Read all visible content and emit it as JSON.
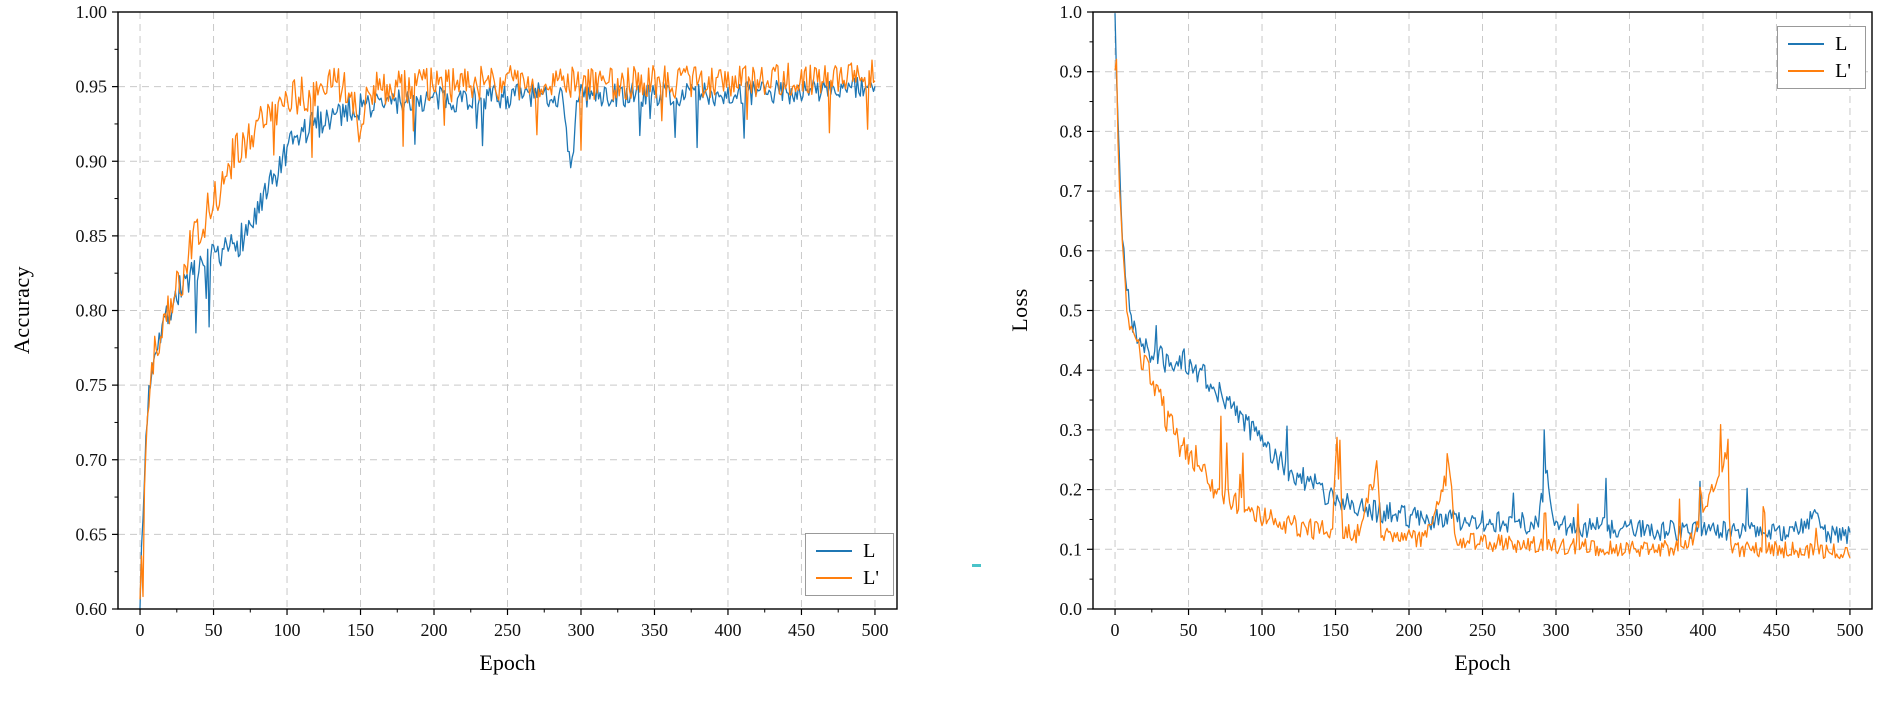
{
  "figure": {
    "background": "#ffffff",
    "grid_color": "#c9c9c9",
    "axis_color": "#000000"
  },
  "stray_mark": {
    "color": "#4ac3c9"
  },
  "chart_data": [
    {
      "type": "line",
      "title": "",
      "xlabel": "Epoch",
      "ylabel": "Accuracy",
      "xlim": [
        -15,
        515
      ],
      "ylim": [
        0.6,
        1.0
      ],
      "grid": true,
      "legend_position": "bottom-right",
      "xticks": {
        "values": [
          0,
          50,
          100,
          150,
          200,
          250,
          300,
          350,
          400,
          450,
          500
        ],
        "labels": [
          "0",
          "50",
          "100",
          "150",
          "200",
          "250",
          "300",
          "350",
          "400",
          "450",
          "500"
        ]
      },
      "yticks": {
        "values": [
          0.6,
          0.65,
          0.7,
          0.75,
          0.8,
          0.85,
          0.9,
          0.95,
          1.0
        ],
        "labels": [
          "0.60",
          "0.65",
          "0.70",
          "0.75",
          "0.80",
          "0.85",
          "0.90",
          "0.95",
          "1.00"
        ]
      },
      "series": [
        {
          "name": "L",
          "color": "#1f77b4",
          "seed": 7,
          "spike_prob": 0.02,
          "spike_scale": 2.2,
          "spike_dir": -1,
          "anchors": [
            [
              0,
              0.608
            ],
            [
              2,
              0.66
            ],
            [
              4,
              0.715
            ],
            [
              6,
              0.745
            ],
            [
              8,
              0.762
            ],
            [
              10,
              0.775
            ],
            [
              14,
              0.787
            ],
            [
              18,
              0.796
            ],
            [
              22,
              0.805
            ],
            [
              26,
              0.812
            ],
            [
              30,
              0.82
            ],
            [
              36,
              0.822
            ],
            [
              42,
              0.826
            ],
            [
              48,
              0.833
            ],
            [
              54,
              0.831
            ],
            [
              60,
              0.84
            ],
            [
              66,
              0.847
            ],
            [
              72,
              0.852
            ],
            [
              78,
              0.862
            ],
            [
              84,
              0.872
            ],
            [
              90,
              0.885
            ],
            [
              96,
              0.897
            ],
            [
              102,
              0.908
            ],
            [
              108,
              0.916
            ],
            [
              114,
              0.921
            ],
            [
              120,
              0.926
            ],
            [
              128,
              0.93
            ],
            [
              136,
              0.933
            ],
            [
              144,
              0.936
            ],
            [
              152,
              0.937
            ],
            [
              165,
              0.939
            ],
            [
              180,
              0.94
            ],
            [
              200,
              0.941
            ],
            [
              230,
              0.943
            ],
            [
              260,
              0.944
            ],
            [
              288,
              0.944
            ],
            [
              293,
              0.893
            ],
            [
              298,
              0.944
            ],
            [
              330,
              0.944
            ],
            [
              370,
              0.945
            ],
            [
              410,
              0.945
            ],
            [
              450,
              0.947
            ],
            [
              500,
              0.95
            ]
          ],
          "noise": [
            [
              0,
              0.008
            ],
            [
              20,
              0.011
            ],
            [
              60,
              0.012
            ],
            [
              120,
              0.011
            ],
            [
              160,
              0.009
            ],
            [
              500,
              0.008
            ]
          ]
        },
        {
          "name": "L'",
          "color": "#ff7f0e",
          "seed": 12,
          "spike_prob": 0.025,
          "spike_scale": 2.0,
          "spike_dir": -1,
          "anchors": [
            [
              0,
              0.612
            ],
            [
              2,
              0.655
            ],
            [
              4,
              0.7
            ],
            [
              6,
              0.735
            ],
            [
              8,
              0.757
            ],
            [
              10,
              0.772
            ],
            [
              14,
              0.788
            ],
            [
              18,
              0.8
            ],
            [
              22,
              0.81
            ],
            [
              26,
              0.818
            ],
            [
              30,
              0.828
            ],
            [
              34,
              0.84
            ],
            [
              38,
              0.848
            ],
            [
              42,
              0.855
            ],
            [
              46,
              0.865
            ],
            [
              50,
              0.875
            ],
            [
              54,
              0.882
            ],
            [
              58,
              0.892
            ],
            [
              62,
              0.9
            ],
            [
              66,
              0.908
            ],
            [
              70,
              0.914
            ],
            [
              76,
              0.92
            ],
            [
              82,
              0.926
            ],
            [
              88,
              0.93
            ],
            [
              94,
              0.935
            ],
            [
              100,
              0.94
            ],
            [
              108,
              0.944
            ],
            [
              116,
              0.947
            ],
            [
              124,
              0.949
            ],
            [
              134,
              0.95
            ],
            [
              144,
              0.95
            ],
            [
              149,
              0.918
            ],
            [
              154,
              0.949
            ],
            [
              170,
              0.95
            ],
            [
              200,
              0.951
            ],
            [
              240,
              0.952
            ],
            [
              280,
              0.953
            ],
            [
              320,
              0.952
            ],
            [
              360,
              0.953
            ],
            [
              400,
              0.953
            ],
            [
              440,
              0.955
            ],
            [
              470,
              0.955
            ],
            [
              500,
              0.957
            ]
          ],
          "noise": [
            [
              0,
              0.013
            ],
            [
              30,
              0.015
            ],
            [
              100,
              0.013
            ],
            [
              160,
              0.012
            ],
            [
              500,
              0.011
            ]
          ]
        }
      ]
    },
    {
      "type": "line",
      "title": "",
      "xlabel": "Epoch",
      "ylabel": "Loss",
      "xlim": [
        -15,
        515
      ],
      "ylim": [
        0.0,
        1.0
      ],
      "grid": true,
      "legend_position": "top-right",
      "xticks": {
        "values": [
          0,
          50,
          100,
          150,
          200,
          250,
          300,
          350,
          400,
          450,
          500
        ],
        "labels": [
          "0",
          "50",
          "100",
          "150",
          "200",
          "250",
          "300",
          "350",
          "400",
          "450",
          "500"
        ]
      },
      "yticks": {
        "values": [
          0.0,
          0.1,
          0.2,
          0.3,
          0.4,
          0.5,
          0.6,
          0.7,
          0.8,
          0.9,
          1.0
        ],
        "labels": [
          "0.0",
          "0.1",
          "0.2",
          "0.3",
          "0.4",
          "0.5",
          "0.6",
          "0.7",
          "0.8",
          "0.9",
          "1.0"
        ]
      },
      "series": [
        {
          "name": "L",
          "color": "#1f77b4",
          "seed": 21,
          "spike_prob": 0.03,
          "spike_scale": 2.5,
          "spike_dir": 1,
          "anchors": [
            [
              0,
              1.0
            ],
            [
              1,
              0.9
            ],
            [
              2,
              0.82
            ],
            [
              3,
              0.74
            ],
            [
              4,
              0.68
            ],
            [
              5,
              0.63
            ],
            [
              6,
              0.6
            ],
            [
              8,
              0.545
            ],
            [
              10,
              0.5
            ],
            [
              13,
              0.47
            ],
            [
              16,
              0.452
            ],
            [
              20,
              0.437
            ],
            [
              25,
              0.428
            ],
            [
              30,
              0.422
            ],
            [
              36,
              0.415
            ],
            [
              42,
              0.412
            ],
            [
              48,
              0.418
            ],
            [
              54,
              0.405
            ],
            [
              60,
              0.395
            ],
            [
              66,
              0.378
            ],
            [
              72,
              0.36
            ],
            [
              78,
              0.342
            ],
            [
              84,
              0.325
            ],
            [
              90,
              0.305
            ],
            [
              96,
              0.29
            ],
            [
              102,
              0.272
            ],
            [
              108,
              0.256
            ],
            [
              114,
              0.245
            ],
            [
              120,
              0.232
            ],
            [
              128,
              0.218
            ],
            [
              136,
              0.205
            ],
            [
              144,
              0.195
            ],
            [
              152,
              0.185
            ],
            [
              162,
              0.175
            ],
            [
              172,
              0.168
            ],
            [
              185,
              0.16
            ],
            [
              200,
              0.155
            ],
            [
              220,
              0.15
            ],
            [
              240,
              0.148
            ],
            [
              265,
              0.144
            ],
            [
              288,
              0.142
            ],
            [
              293,
              0.235
            ],
            [
              298,
              0.142
            ],
            [
              320,
              0.138
            ],
            [
              350,
              0.134
            ],
            [
              380,
              0.132
            ],
            [
              410,
              0.13
            ],
            [
              440,
              0.128
            ],
            [
              460,
              0.127
            ],
            [
              478,
              0.155
            ],
            [
              484,
              0.127
            ],
            [
              500,
              0.122
            ]
          ],
          "noise": [
            [
              0,
              0.015
            ],
            [
              10,
              0.02
            ],
            [
              60,
              0.022
            ],
            [
              120,
              0.022
            ],
            [
              180,
              0.02
            ],
            [
              500,
              0.016
            ]
          ]
        },
        {
          "name": "L'",
          "color": "#ff7f0e",
          "seed": 33,
          "spike_prob": 0.04,
          "spike_scale": 2.8,
          "spike_dir": 1,
          "anchors": [
            [
              0,
              0.9
            ],
            [
              1,
              0.84
            ],
            [
              2,
              0.77
            ],
            [
              3,
              0.7
            ],
            [
              4,
              0.645
            ],
            [
              5,
              0.6
            ],
            [
              6,
              0.565
            ],
            [
              8,
              0.515
            ],
            [
              10,
              0.48
            ],
            [
              13,
              0.452
            ],
            [
              16,
              0.432
            ],
            [
              20,
              0.408
            ],
            [
              24,
              0.388
            ],
            [
              28,
              0.362
            ],
            [
              32,
              0.338
            ],
            [
              36,
              0.315
            ],
            [
              40,
              0.295
            ],
            [
              44,
              0.278
            ],
            [
              48,
              0.262
            ],
            [
              52,
              0.25
            ],
            [
              56,
              0.255
            ],
            [
              60,
              0.225
            ],
            [
              65,
              0.21
            ],
            [
              70,
              0.198
            ],
            [
              76,
              0.185
            ],
            [
              82,
              0.175
            ],
            [
              88,
              0.168
            ],
            [
              94,
              0.16
            ],
            [
              100,
              0.155
            ],
            [
              108,
              0.148
            ],
            [
              116,
              0.142
            ],
            [
              126,
              0.138
            ],
            [
              136,
              0.134
            ],
            [
              148,
              0.13
            ],
            [
              151,
              0.285
            ],
            [
              154,
              0.13
            ],
            [
              166,
              0.126
            ],
            [
              178,
              0.24
            ],
            [
              181,
              0.124
            ],
            [
              195,
              0.12
            ],
            [
              210,
              0.118
            ],
            [
              228,
              0.235
            ],
            [
              231,
              0.115
            ],
            [
              250,
              0.112
            ],
            [
              275,
              0.108
            ],
            [
              300,
              0.105
            ],
            [
              330,
              0.103
            ],
            [
              360,
              0.1
            ],
            [
              390,
              0.103
            ],
            [
              416,
              0.255
            ],
            [
              419,
              0.1
            ],
            [
              445,
              0.1
            ],
            [
              470,
              0.098
            ],
            [
              500,
              0.095
            ]
          ],
          "noise": [
            [
              0,
              0.02
            ],
            [
              20,
              0.025
            ],
            [
              60,
              0.022
            ],
            [
              120,
              0.018
            ],
            [
              200,
              0.015
            ],
            [
              500,
              0.013
            ]
          ]
        }
      ]
    }
  ]
}
